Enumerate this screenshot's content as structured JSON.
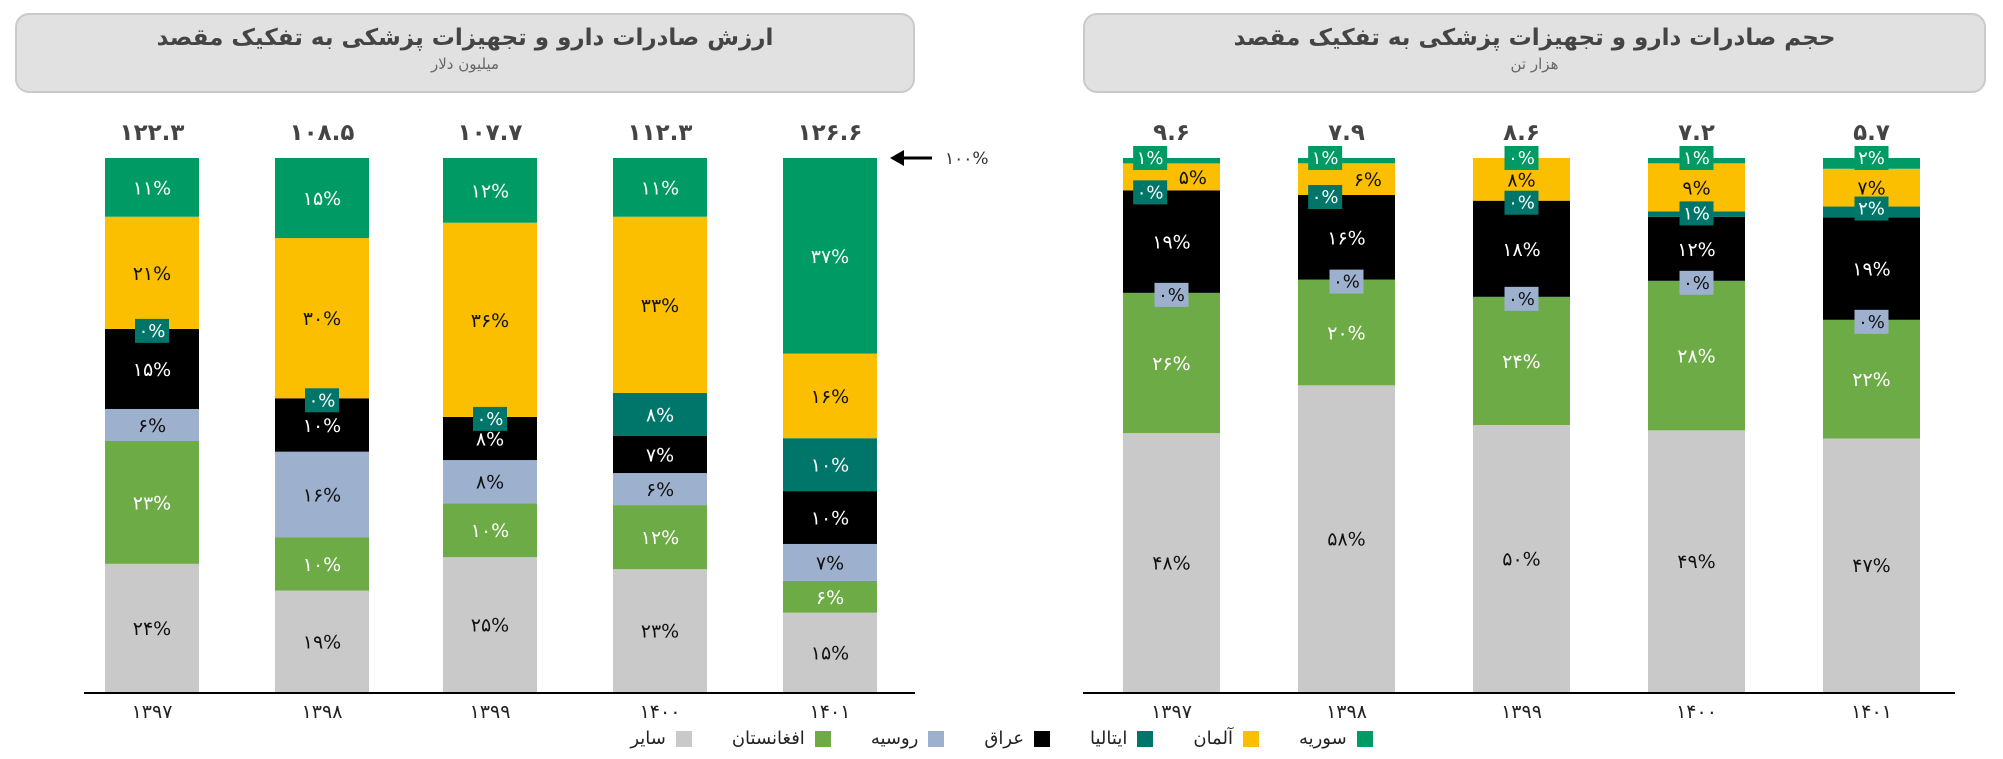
{
  "series_colors": {
    "syria": "#009b64",
    "germany": "#fbbf00",
    "italy": "#00766a",
    "iraq": "#000000",
    "russia": "#9db0ce",
    "afghanistan": "#6dab47",
    "other": "#c9c9c9"
  },
  "chart_data": [
    {
      "type": "bar",
      "stacked": "percent",
      "title": "ارزش صادرات دارو و تجهیزات پزشکی به تفکیک مقصد",
      "subtitle": "میلیون دلار",
      "categories": [
        "۱۳۹۷",
        "۱۳۹۸",
        "۱۳۹۹",
        "۱۴۰۰",
        "۱۴۰۱"
      ],
      "totals": [
        "۱۲۲.۳",
        "۱۰۸.۵",
        "۱۰۷.۷",
        "۱۱۲.۳",
        "۱۲۶.۶"
      ],
      "annotation": "۱۰۰%",
      "series": [
        {
          "key": "other",
          "name": "سایر",
          "values": [
            24,
            19,
            25,
            23,
            15
          ]
        },
        {
          "key": "afghanistan",
          "name": "افغانستان",
          "values": [
            23,
            10,
            10,
            12,
            6
          ]
        },
        {
          "key": "russia",
          "name": "روسیه",
          "values": [
            6,
            16,
            8,
            6,
            7
          ]
        },
        {
          "key": "iraq",
          "name": "عراق",
          "values": [
            15,
            10,
            8,
            7,
            10
          ]
        },
        {
          "key": "italy",
          "name": "ایتالیا",
          "values": [
            0,
            0,
            0,
            8,
            10
          ]
        },
        {
          "key": "germany",
          "name": "آلمان",
          "values": [
            21,
            30,
            36,
            33,
            16
          ]
        },
        {
          "key": "syria",
          "name": "سوریه",
          "values": [
            11,
            15,
            12,
            11,
            37
          ]
        }
      ]
    },
    {
      "type": "bar",
      "stacked": "percent",
      "title": "حجم صادرات دارو و تجهیزات پزشکی به تفکیک مقصد",
      "subtitle": "هزار تن",
      "categories": [
        "۱۳۹۷",
        "۱۳۹۸",
        "۱۳۹۹",
        "۱۴۰۰",
        "۱۴۰۱"
      ],
      "totals": [
        "۹.۶",
        "۷.۹",
        "۸.۶",
        "۷.۲",
        "۵.۷"
      ],
      "series": [
        {
          "key": "other",
          "name": "سایر",
          "values": [
            48,
            58,
            50,
            49,
            47
          ]
        },
        {
          "key": "afghanistan",
          "name": "افغانستان",
          "values": [
            26,
            20,
            24,
            28,
            22
          ]
        },
        {
          "key": "russia",
          "name": "روسیه",
          "values": [
            0,
            0,
            0,
            0,
            0
          ]
        },
        {
          "key": "iraq",
          "name": "عراق",
          "values": [
            19,
            16,
            18,
            12,
            19
          ]
        },
        {
          "key": "italy",
          "name": "ایتالیا",
          "values": [
            0,
            0,
            0,
            1,
            2
          ]
        },
        {
          "key": "germany",
          "name": "آلمان",
          "values": [
            5,
            6,
            8,
            9,
            7
          ]
        },
        {
          "key": "syria",
          "name": "سوریه",
          "values": [
            1,
            1,
            0,
            1,
            2
          ]
        }
      ]
    }
  ],
  "legend": [
    {
      "key": "syria",
      "label": "سوریه"
    },
    {
      "key": "germany",
      "label": "آلمان"
    },
    {
      "key": "italy",
      "label": "ایتالیا"
    },
    {
      "key": "iraq",
      "label": "عراق"
    },
    {
      "key": "russia",
      "label": "روسیه"
    },
    {
      "key": "afghanistan",
      "label": "افغانستان"
    },
    {
      "key": "other",
      "label": "سایر"
    }
  ]
}
